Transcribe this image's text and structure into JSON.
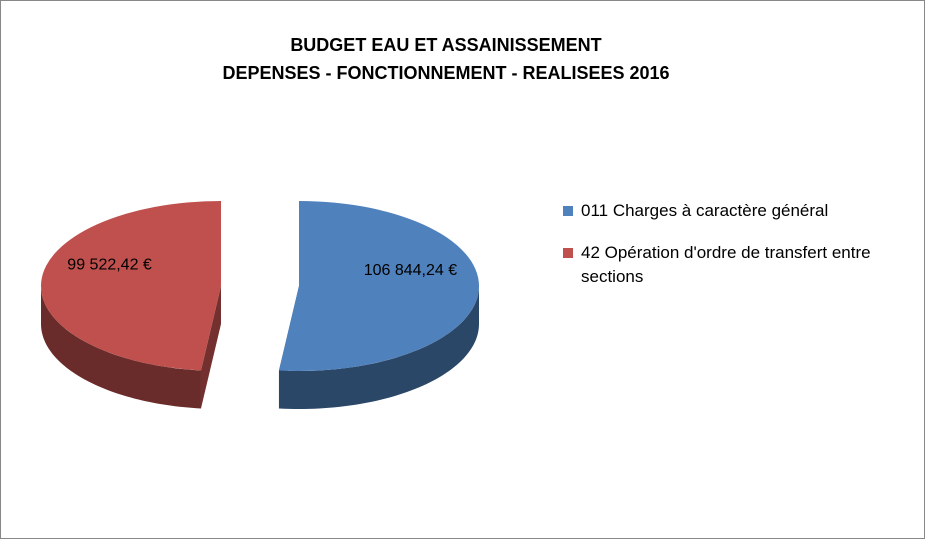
{
  "chart_data": {
    "type": "pie",
    "title": "BUDGET EAU ET ASSAINISSEMENT",
    "subtitle": "DEPENSES - FONCTIONNEMENT - REALISEES 2016",
    "categories": [
      "011  Charges à caractère général",
      "42 Opération d'ordre de transfert entre sections"
    ],
    "values": [
      106844.24,
      99522.42
    ],
    "value_labels": [
      "106 844,24 €",
      "99 522,42 €"
    ],
    "colors": [
      "#4f81bd",
      "#c0504d"
    ],
    "legend": "right"
  }
}
